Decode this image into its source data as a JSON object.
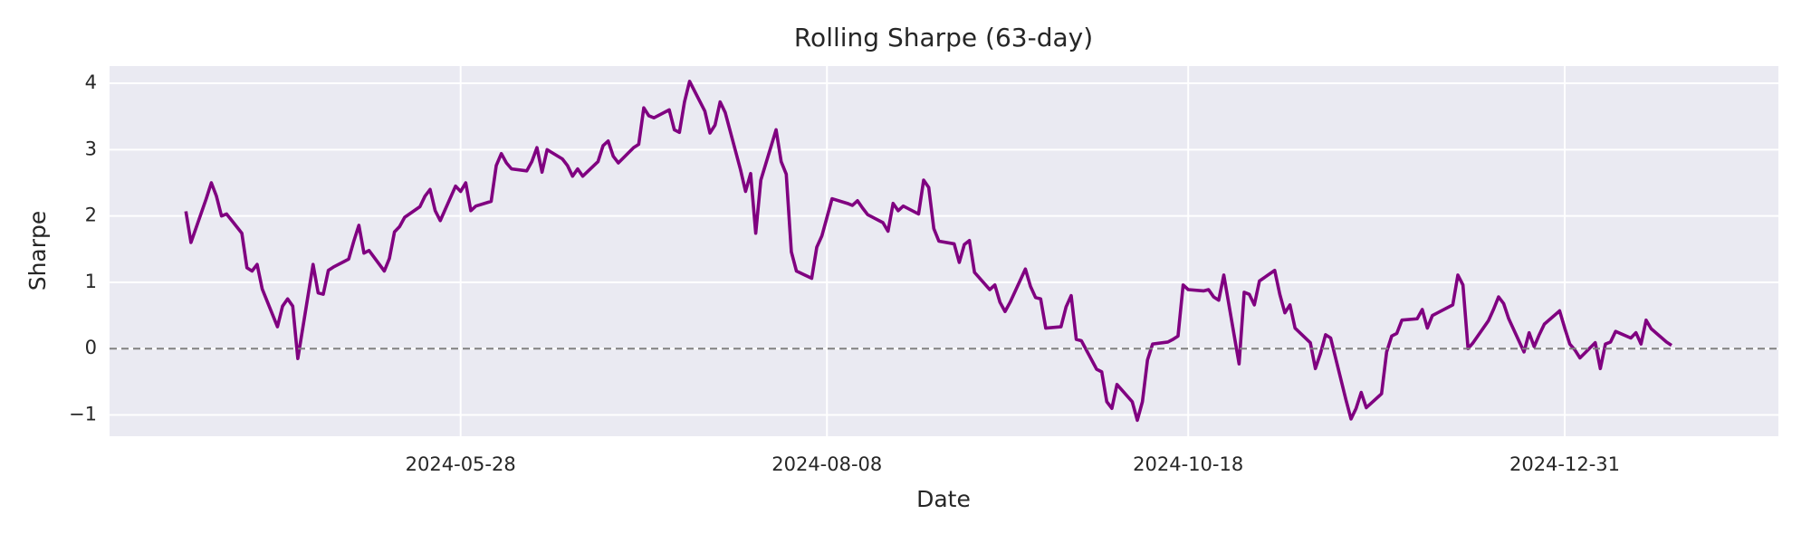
{
  "chart_data": {
    "type": "line",
    "title": "Rolling Sharpe (63-day)",
    "x_label": "Date",
    "y_label": "Sharpe",
    "x": [
      "2024-04-04",
      "2024-04-05",
      "2024-04-08",
      "2024-04-09",
      "2024-04-10",
      "2024-04-11",
      "2024-04-12",
      "2024-04-15",
      "2024-04-16",
      "2024-04-17",
      "2024-04-18",
      "2024-04-19",
      "2024-04-22",
      "2024-04-23",
      "2024-04-24",
      "2024-04-25",
      "2024-04-26",
      "2024-04-29",
      "2024-04-30",
      "2024-05-01",
      "2024-05-02",
      "2024-05-03",
      "2024-05-06",
      "2024-05-07",
      "2024-05-08",
      "2024-05-09",
      "2024-05-10",
      "2024-05-13",
      "2024-05-14",
      "2024-05-15",
      "2024-05-16",
      "2024-05-17",
      "2024-05-20",
      "2024-05-21",
      "2024-05-22",
      "2024-05-23",
      "2024-05-24",
      "2024-05-27",
      "2024-05-28",
      "2024-05-29",
      "2024-05-30",
      "2024-05-31",
      "2024-06-03",
      "2024-06-04",
      "2024-06-05",
      "2024-06-06",
      "2024-06-07",
      "2024-06-10",
      "2024-06-11",
      "2024-06-12",
      "2024-06-13",
      "2024-06-14",
      "2024-06-17",
      "2024-06-18",
      "2024-06-19",
      "2024-06-20",
      "2024-06-21",
      "2024-06-24",
      "2024-06-25",
      "2024-06-26",
      "2024-06-27",
      "2024-06-28",
      "2024-07-01",
      "2024-07-02",
      "2024-07-03",
      "2024-07-04",
      "2024-07-05",
      "2024-07-08",
      "2024-07-09",
      "2024-07-10",
      "2024-07-11",
      "2024-07-12",
      "2024-07-15",
      "2024-07-16",
      "2024-07-17",
      "2024-07-18",
      "2024-07-19",
      "2024-07-22",
      "2024-07-23",
      "2024-07-24",
      "2024-07-25",
      "2024-07-26",
      "2024-07-29",
      "2024-07-30",
      "2024-07-31",
      "2024-08-01",
      "2024-08-02",
      "2024-08-05",
      "2024-08-06",
      "2024-08-07",
      "2024-08-08",
      "2024-08-09",
      "2024-08-12",
      "2024-08-13",
      "2024-08-14",
      "2024-08-15",
      "2024-08-16",
      "2024-08-19",
      "2024-08-20",
      "2024-08-21",
      "2024-08-22",
      "2024-08-23",
      "2024-08-26",
      "2024-08-27",
      "2024-08-28",
      "2024-08-29",
      "2024-08-30",
      "2024-09-02",
      "2024-09-03",
      "2024-09-04",
      "2024-09-05",
      "2024-09-06",
      "2024-09-09",
      "2024-09-10",
      "2024-09-11",
      "2024-09-12",
      "2024-09-13",
      "2024-09-16",
      "2024-09-17",
      "2024-09-18",
      "2024-09-19",
      "2024-09-20",
      "2024-09-23",
      "2024-09-24",
      "2024-09-25",
      "2024-09-26",
      "2024-09-27",
      "2024-09-30",
      "2024-10-01",
      "2024-10-02",
      "2024-10-03",
      "2024-10-04",
      "2024-10-07",
      "2024-10-08",
      "2024-10-09",
      "2024-10-10",
      "2024-10-11",
      "2024-10-14",
      "2024-10-15",
      "2024-10-16",
      "2024-10-17",
      "2024-10-18",
      "2024-10-21",
      "2024-10-22",
      "2024-10-23",
      "2024-10-24",
      "2024-10-25",
      "2024-10-28",
      "2024-10-29",
      "2024-10-30",
      "2024-10-31",
      "2024-11-01",
      "2024-11-04",
      "2024-11-05",
      "2024-11-06",
      "2024-11-07",
      "2024-11-08",
      "2024-11-11",
      "2024-11-12",
      "2024-11-13",
      "2024-11-14",
      "2024-11-15",
      "2024-11-18",
      "2024-11-19",
      "2024-11-20",
      "2024-11-21",
      "2024-11-22",
      "2024-11-25",
      "2024-11-26",
      "2024-11-27",
      "2024-11-28",
      "2024-11-29",
      "2024-12-02",
      "2024-12-03",
      "2024-12-04",
      "2024-12-05",
      "2024-12-06",
      "2024-12-09",
      "2024-12-10",
      "2024-12-11",
      "2024-12-12",
      "2024-12-13",
      "2024-12-16",
      "2024-12-17",
      "2024-12-18",
      "2024-12-19",
      "2024-12-20",
      "2024-12-23",
      "2024-12-24",
      "2024-12-25",
      "2024-12-26",
      "2024-12-27",
      "2024-12-30",
      "2024-12-31",
      "2025-01-01",
      "2025-01-02",
      "2025-01-03",
      "2025-01-06",
      "2025-01-07",
      "2025-01-08",
      "2025-01-09",
      "2025-01-10",
      "2025-01-13",
      "2025-01-14",
      "2025-01-15",
      "2025-01-16",
      "2025-01-17",
      "2025-01-20",
      "2025-01-21"
    ],
    "series": [
      {
        "color": "#800080",
        "values": [
          2.07,
          1.6,
          2.26,
          2.5,
          2.3,
          2.0,
          2.03,
          1.74,
          1.22,
          1.17,
          1.27,
          0.9,
          0.33,
          0.64,
          0.75,
          0.64,
          -0.15,
          1.27,
          0.84,
          0.82,
          1.18,
          1.23,
          1.35,
          1.62,
          1.86,
          1.44,
          1.48,
          1.17,
          1.36,
          1.76,
          1.84,
          1.98,
          2.14,
          2.3,
          2.4,
          2.08,
          1.93,
          2.45,
          2.37,
          2.5,
          2.08,
          2.15,
          2.22,
          2.76,
          2.94,
          2.8,
          2.71,
          2.68,
          2.82,
          3.03,
          2.66,
          3.0,
          2.86,
          2.76,
          2.6,
          2.71,
          2.6,
          2.82,
          3.06,
          3.13,
          2.9,
          2.8,
          3.03,
          3.08,
          3.63,
          3.51,
          3.48,
          3.6,
          3.3,
          3.26,
          3.72,
          4.03,
          3.58,
          3.25,
          3.37,
          3.72,
          3.56,
          2.7,
          2.37,
          2.64,
          1.74,
          2.54,
          3.3,
          2.82,
          2.63,
          1.46,
          1.17,
          1.06,
          1.53,
          1.7,
          1.98,
          2.26,
          2.19,
          2.16,
          2.23,
          2.12,
          2.02,
          1.9,
          1.77,
          2.19,
          2.08,
          2.15,
          2.03,
          2.54,
          2.43,
          1.81,
          1.62,
          1.58,
          1.3,
          1.57,
          1.63,
          1.15,
          0.89,
          0.96,
          0.7,
          0.56,
          0.7,
          1.2,
          0.94,
          0.77,
          0.75,
          0.31,
          0.33,
          0.63,
          0.8,
          0.14,
          0.12,
          -0.31,
          -0.35,
          -0.8,
          -0.9,
          -0.54,
          -0.8,
          -1.08,
          -0.8,
          -0.17,
          0.07,
          0.1,
          0.14,
          0.19,
          0.96,
          0.89,
          0.87,
          0.89,
          0.78,
          0.73,
          1.11,
          -0.23,
          0.85,
          0.82,
          0.66,
          1.02,
          1.18,
          0.82,
          0.54,
          0.66,
          0.31,
          0.09,
          -0.3,
          -0.07,
          0.21,
          0.16,
          -0.77,
          -1.06,
          -0.9,
          -0.66,
          -0.89,
          -0.68,
          -0.05,
          0.19,
          0.23,
          0.43,
          0.45,
          0.59,
          0.31,
          0.5,
          0.54,
          0.66,
          1.11,
          0.96,
          0.0,
          0.09,
          0.42,
          0.59,
          0.78,
          0.68,
          0.45,
          -0.05,
          0.24,
          0.03,
          0.21,
          0.37,
          0.57,
          0.31,
          0.07,
          -0.02,
          -0.14,
          0.09,
          -0.3,
          0.07,
          0.1,
          0.26,
          0.16,
          0.24,
          0.07,
          0.43,
          0.3,
          0.1,
          0.05
        ]
      }
    ],
    "xlim": [
      "2024-03-20",
      "2025-02-11"
    ],
    "xticks": [
      "2024-05-28",
      "2024-08-08",
      "2024-10-18",
      "2024-12-31"
    ],
    "ylim": [
      -1.32,
      4.26
    ],
    "yticks": [
      {
        "value": -1,
        "label": "−1"
      },
      0,
      1,
      2,
      3,
      4
    ],
    "grid": true,
    "reference_line": {
      "y": 0,
      "color": "#808080",
      "style": "dashed"
    }
  }
}
